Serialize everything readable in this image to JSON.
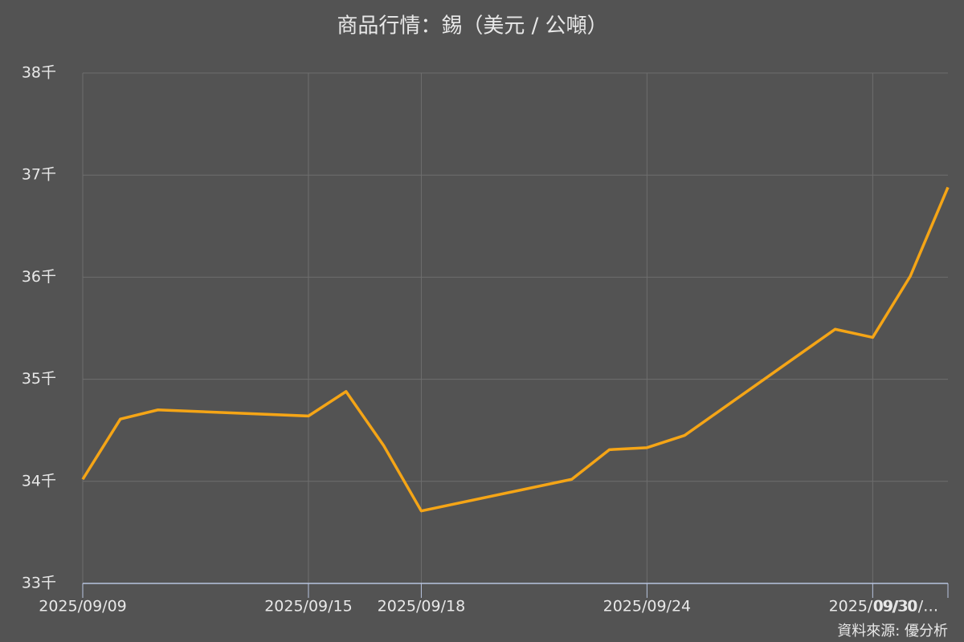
{
  "chart_data": {
    "type": "line",
    "title": "商品行情：錫（美元 / 公噸）",
    "source": "資料來源: 優分析",
    "x": [
      "2025/09/09",
      "2025/09/10",
      "2025/09/11",
      "2025/09/15",
      "2025/09/16",
      "2025/09/17",
      "2025/09/18",
      "2025/09/22",
      "2025/09/23",
      "2025/09/24",
      "2025/09/25",
      "2025/09/29",
      "2025/09/30",
      "2025/10/01",
      "2025/10/02"
    ],
    "series": [
      {
        "name": "錫",
        "color": "#f5a516",
        "values": [
          34020,
          34610,
          34700,
          34640,
          34880,
          34350,
          33710,
          34020,
          34310,
          34330,
          34450,
          35490,
          35410,
          36010,
          36880
        ]
      }
    ],
    "xlim": [
      "2025/09/09",
      "2025/10/02"
    ],
    "xticks": [
      "2025/09/09",
      "2025/09/15",
      "2025/09/18",
      "2025/09/24",
      "2025/09/30",
      {
        "value": "2025/10/01",
        "label": "09/30/…"
      }
    ],
    "ylim": [
      33000,
      38000
    ],
    "yticks": [
      {
        "value": 33000,
        "label": "33千"
      },
      {
        "value": 34000,
        "label": "34千"
      },
      {
        "value": 35000,
        "label": "35千"
      },
      {
        "value": 36000,
        "label": "36千"
      },
      {
        "value": 37000,
        "label": "37千"
      },
      {
        "value": 38000,
        "label": "38千"
      }
    ],
    "grid": true
  }
}
